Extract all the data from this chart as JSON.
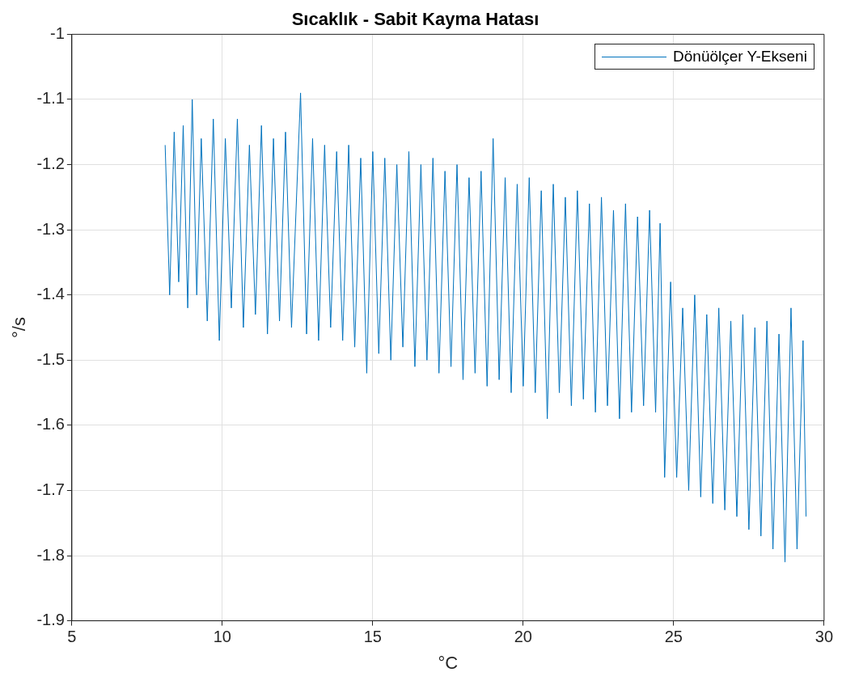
{
  "chart_data": {
    "type": "line",
    "title": "Sıcaklık - Sabit Kayma Hatası",
    "xlabel": "°C",
    "ylabel": "°/s",
    "xlim": [
      5,
      30
    ],
    "xticks": [
      5,
      10,
      15,
      20,
      25,
      30
    ],
    "ylim": [
      -1.9,
      -1
    ],
    "yticks": [
      -1.9,
      -1.8,
      -1.7,
      -1.6,
      -1.5,
      -1.4,
      -1.3,
      -1.2,
      -1.1,
      -1
    ],
    "grid": true,
    "legend": "top right",
    "marker": "none",
    "line_style": "solid",
    "series": [
      {
        "name": "Dönüölçer Y-Ekseni",
        "color": "#0072bd",
        "x": [
          8.1,
          8.25,
          8.4,
          8.55,
          8.7,
          8.85,
          9.0,
          9.15,
          9.3,
          9.5,
          9.7,
          9.9,
          10.1,
          10.3,
          10.5,
          10.7,
          10.9,
          11.1,
          11.3,
          11.5,
          11.7,
          11.9,
          12.1,
          12.3,
          12.6,
          12.8,
          13.0,
          13.2,
          13.4,
          13.6,
          13.8,
          14.0,
          14.2,
          14.4,
          14.6,
          14.8,
          15.0,
          15.2,
          15.4,
          15.6,
          15.8,
          16.0,
          16.2,
          16.4,
          16.6,
          16.8,
          17.0,
          17.2,
          17.4,
          17.6,
          17.8,
          18.0,
          18.2,
          18.4,
          18.6,
          18.8,
          19.0,
          19.2,
          19.4,
          19.6,
          19.8,
          20.0,
          20.2,
          20.4,
          20.6,
          20.8,
          21.0,
          21.2,
          21.4,
          21.6,
          21.8,
          22.0,
          22.2,
          22.4,
          22.6,
          22.8,
          23.0,
          23.2,
          23.4,
          23.6,
          23.8,
          24.0,
          24.2,
          24.4,
          24.55,
          24.7,
          24.9,
          25.1,
          25.3,
          25.5,
          25.7,
          25.9,
          26.1,
          26.3,
          26.5,
          26.7,
          26.9,
          27.1,
          27.3,
          27.5,
          27.7,
          27.9,
          28.1,
          28.3,
          28.5,
          28.7,
          28.9,
          29.1,
          29.3,
          29.4
        ],
        "values": [
          -1.17,
          -1.4,
          -1.15,
          -1.38,
          -1.14,
          -1.42,
          -1.1,
          -1.4,
          -1.16,
          -1.44,
          -1.13,
          -1.47,
          -1.16,
          -1.42,
          -1.13,
          -1.45,
          -1.17,
          -1.43,
          -1.14,
          -1.46,
          -1.16,
          -1.44,
          -1.15,
          -1.45,
          -1.09,
          -1.46,
          -1.16,
          -1.47,
          -1.17,
          -1.45,
          -1.18,
          -1.47,
          -1.17,
          -1.48,
          -1.19,
          -1.52,
          -1.18,
          -1.49,
          -1.19,
          -1.5,
          -1.2,
          -1.48,
          -1.18,
          -1.51,
          -1.2,
          -1.5,
          -1.19,
          -1.52,
          -1.21,
          -1.51,
          -1.2,
          -1.53,
          -1.22,
          -1.52,
          -1.21,
          -1.54,
          -1.16,
          -1.53,
          -1.22,
          -1.55,
          -1.23,
          -1.54,
          -1.22,
          -1.55,
          -1.24,
          -1.59,
          -1.23,
          -1.55,
          -1.25,
          -1.57,
          -1.24,
          -1.56,
          -1.26,
          -1.58,
          -1.25,
          -1.57,
          -1.27,
          -1.59,
          -1.26,
          -1.58,
          -1.28,
          -1.57,
          -1.27,
          -1.58,
          -1.29,
          -1.68,
          -1.38,
          -1.68,
          -1.42,
          -1.7,
          -1.4,
          -1.71,
          -1.43,
          -1.72,
          -1.42,
          -1.73,
          -1.44,
          -1.74,
          -1.43,
          -1.76,
          -1.45,
          -1.77,
          -1.44,
          -1.79,
          -1.46,
          -1.81,
          -1.42,
          -1.79,
          -1.47,
          -1.74
        ]
      }
    ]
  }
}
